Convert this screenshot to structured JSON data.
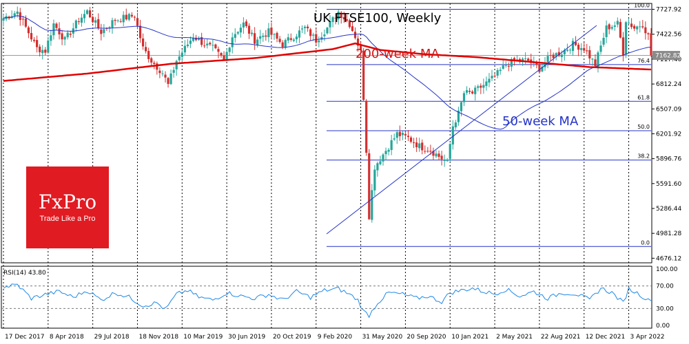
{
  "title": "UK FTSE100, Weekly",
  "annotations": {
    "ma200_label": "200-week MA",
    "ma50_label": "50-week MA"
  },
  "logo": {
    "brand": "FxPro",
    "tagline": "Trade Like a Pro"
  },
  "colors": {
    "bull": "#26a69a",
    "bear": "#d32f2f",
    "ma200": "#e00000",
    "ma50": "#2433c8",
    "fib": "#2433c8",
    "grid": "#000000",
    "logo_bg": "#e11b22",
    "last_price_bg": "#8a8a8a"
  },
  "chart_data": [
    {
      "type": "candlestick",
      "title": "UK FTSE100, Weekly",
      "x_tick_labels": [
        "17 Dec 2017",
        "8 Apr 2018",
        "29 Jul 2018",
        "18 Nov 2018",
        "10 Mar 2019",
        "30 Jun 2019",
        "20 Oct 2019",
        "9 Feb 2020",
        "31 May 2020",
        "20 Sep 2020",
        "10 Jan 2021",
        "2 May 2021",
        "22 Aug 2021",
        "12 Dec 2021",
        "3 Apr 2022"
      ],
      "y_tick_labels": [
        "7727.92",
        "7422.56",
        "7117.40",
        "6812.24",
        "6507.09",
        "6201.92",
        "5896.76",
        "5591.60",
        "5286.44",
        "4981.28",
        "4676.12"
      ],
      "ylim": [
        4676.12,
        7727.92
      ],
      "last_price": "7162.82",
      "fibonacci": [
        {
          "label": "100.0",
          "value": 7727.92
        },
        {
          "label": "76.4",
          "value": 7050
        },
        {
          "label": "61.8",
          "value": 6600
        },
        {
          "label": "50.0",
          "value": 6240
        },
        {
          "label": "38.2",
          "value": 5880
        },
        {
          "label": "0.0",
          "value": 4820
        }
      ],
      "close_anchors": [
        [
          0,
          7620
        ],
        [
          5,
          7700
        ],
        [
          12,
          7250
        ],
        [
          15,
          7220
        ],
        [
          18,
          7550
        ],
        [
          22,
          7350
        ],
        [
          27,
          7600
        ],
        [
          30,
          7700
        ],
        [
          35,
          7450
        ],
        [
          40,
          7600
        ],
        [
          47,
          7650
        ],
        [
          50,
          7250
        ],
        [
          53,
          7100
        ],
        [
          57,
          6950
        ],
        [
          59,
          6800
        ],
        [
          62,
          7100
        ],
        [
          64,
          7200
        ],
        [
          68,
          7400
        ],
        [
          72,
          7300
        ],
        [
          75,
          7250
        ],
        [
          79,
          7100
        ],
        [
          82,
          7400
        ],
        [
          86,
          7550
        ],
        [
          90,
          7350
        ],
        [
          95,
          7450
        ],
        [
          100,
          7300
        ],
        [
          104,
          7400
        ],
        [
          108,
          7500
        ],
        [
          112,
          7350
        ],
        [
          116,
          7500
        ],
        [
          120,
          7700
        ],
        [
          124,
          7550
        ],
        [
          126,
          7400
        ],
        [
          128,
          7200
        ],
        [
          129,
          6650
        ],
        [
          130,
          6000
        ],
        [
          131,
          5200
        ],
        [
          133,
          5800
        ],
        [
          137,
          6000
        ],
        [
          141,
          6200
        ],
        [
          145,
          6150
        ],
        [
          149,
          6050
        ],
        [
          153,
          6000
        ],
        [
          157,
          5900
        ],
        [
          159,
          5850
        ],
        [
          161,
          6300
        ],
        [
          163,
          6450
        ],
        [
          165,
          6700
        ],
        [
          168,
          6700
        ],
        [
          172,
          6800
        ],
        [
          176,
          6900
        ],
        [
          180,
          7050
        ],
        [
          184,
          7100
        ],
        [
          188,
          7100
        ],
        [
          192,
          7000
        ],
        [
          196,
          7150
        ],
        [
          200,
          7200
        ],
        [
          204,
          7300
        ],
        [
          208,
          7250
        ],
        [
          212,
          7050
        ],
        [
          216,
          7500
        ],
        [
          220,
          7550
        ],
        [
          222,
          7200
        ],
        [
          223,
          7600
        ],
        [
          226,
          7500
        ],
        [
          229,
          7550
        ],
        [
          231,
          7400
        ],
        [
          232,
          7170
        ]
      ],
      "ma200_anchors": [
        [
          0,
          6850
        ],
        [
          30,
          6940
        ],
        [
          60,
          7060
        ],
        [
          90,
          7130
        ],
        [
          118,
          7240
        ],
        [
          126,
          7310
        ],
        [
          135,
          7230
        ],
        [
          150,
          7180
        ],
        [
          170,
          7140
        ],
        [
          190,
          7080
        ],
        [
          210,
          7020
        ],
        [
          232,
          6990
        ]
      ],
      "rsi": {
        "label": "RSI(14) 43.80",
        "y_ticks": [
          "100.00",
          "70.00",
          "30.00",
          "0.00"
        ],
        "levels": [
          70,
          30
        ],
        "last": 43.8,
        "anchors": [
          [
            0,
            68
          ],
          [
            5,
            72
          ],
          [
            10,
            48
          ],
          [
            15,
            55
          ],
          [
            20,
            60
          ],
          [
            25,
            50
          ],
          [
            30,
            62
          ],
          [
            35,
            45
          ],
          [
            40,
            58
          ],
          [
            45,
            50
          ],
          [
            50,
            35
          ],
          [
            55,
            40
          ],
          [
            58,
            28
          ],
          [
            62,
            55
          ],
          [
            66,
            62
          ],
          [
            70,
            50
          ],
          [
            75,
            45
          ],
          [
            80,
            58
          ],
          [
            85,
            52
          ],
          [
            90,
            48
          ],
          [
            95,
            55
          ],
          [
            100,
            45
          ],
          [
            105,
            60
          ],
          [
            110,
            50
          ],
          [
            115,
            62
          ],
          [
            120,
            65
          ],
          [
            124,
            55
          ],
          [
            127,
            45
          ],
          [
            129,
            25
          ],
          [
            131,
            18
          ],
          [
            134,
            40
          ],
          [
            138,
            58
          ],
          [
            143,
            55
          ],
          [
            148,
            48
          ],
          [
            152,
            52
          ],
          [
            157,
            42
          ],
          [
            160,
            58
          ],
          [
            164,
            62
          ],
          [
            168,
            66
          ],
          [
            172,
            60
          ],
          [
            176,
            56
          ],
          [
            180,
            64
          ],
          [
            185,
            52
          ],
          [
            190,
            60
          ],
          [
            195,
            48
          ],
          [
            200,
            58
          ],
          [
            205,
            56
          ],
          [
            210,
            45
          ],
          [
            214,
            66
          ],
          [
            218,
            58
          ],
          [
            222,
            40
          ],
          [
            224,
            65
          ],
          [
            228,
            55
          ],
          [
            231,
            44
          ],
          [
            232,
            43.8
          ]
        ]
      }
    }
  ]
}
